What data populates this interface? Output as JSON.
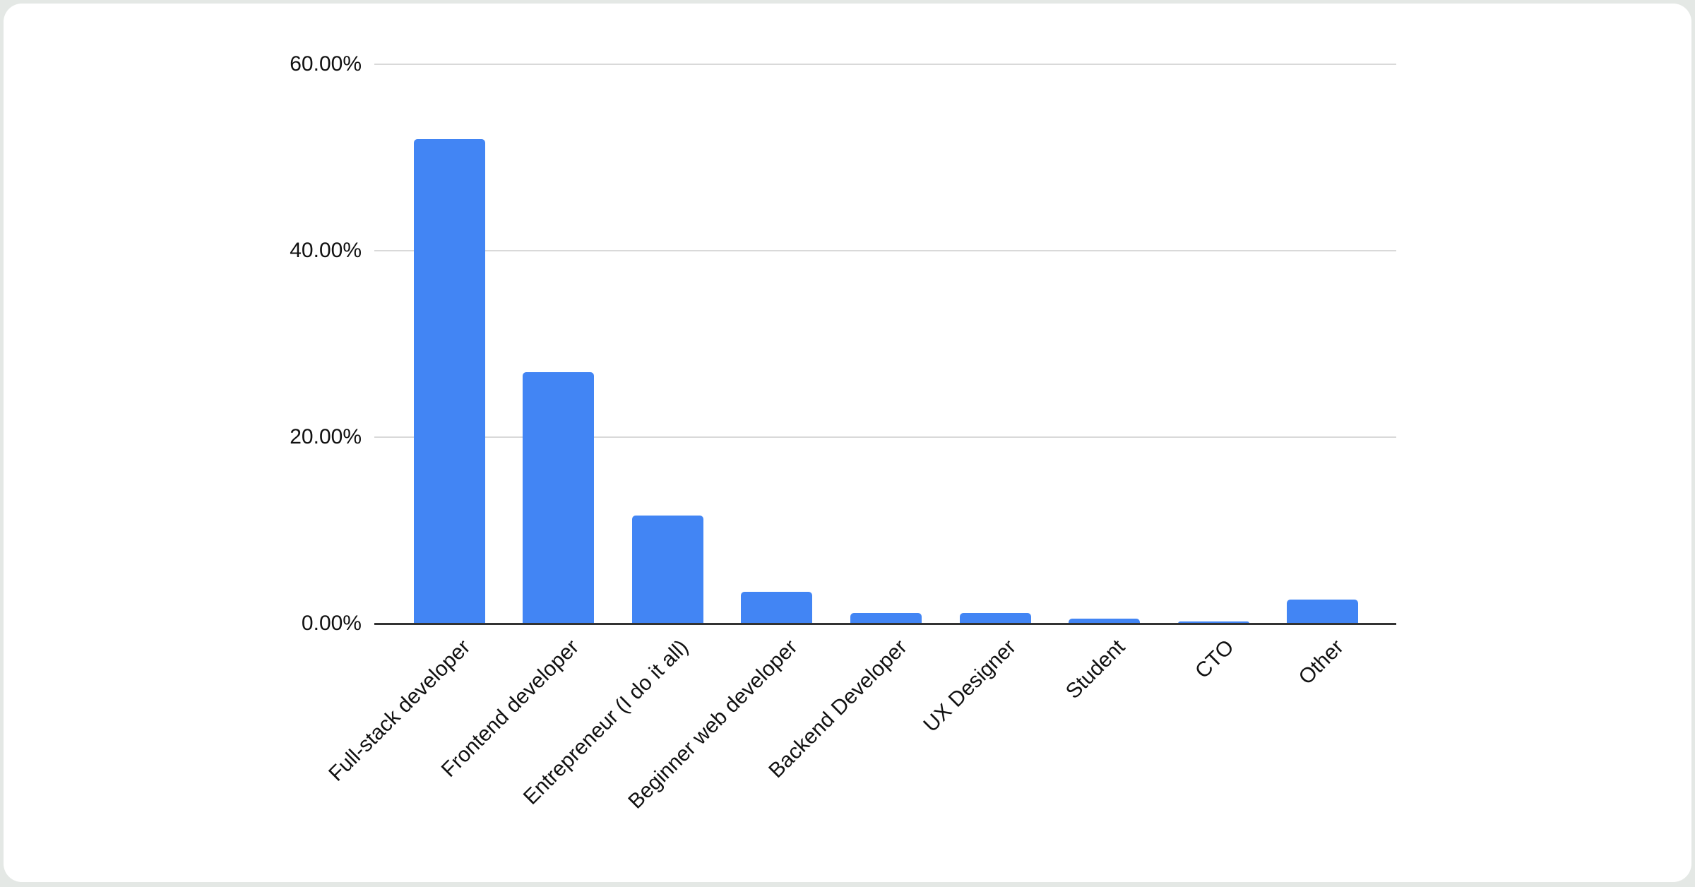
{
  "page": {
    "background_color": "#e4e8e5",
    "card_color": "#ffffff"
  },
  "chart_data": {
    "type": "bar",
    "title": "",
    "xlabel": "",
    "ylabel": "",
    "categories": [
      "Full-stack developer",
      "Frontend developer",
      "Entrepreneur (I do it all)",
      "Beginner web developer",
      "Backend Developer",
      "UX Designer",
      "Student",
      "CTO",
      "Other"
    ],
    "values": [
      52.0,
      27.0,
      11.6,
      3.4,
      1.1,
      1.1,
      0.5,
      0.25,
      2.6
    ],
    "value_unit": "percent",
    "ylim": [
      0,
      60
    ],
    "y_ticks": [
      {
        "value": 0,
        "label": "0.00%"
      },
      {
        "value": 20,
        "label": "20.00%"
      },
      {
        "value": 40,
        "label": "40.00%"
      },
      {
        "value": 60,
        "label": "60.00%"
      }
    ],
    "grid": "horizontal",
    "legend": "none",
    "bar_color": "#4285F4",
    "gridline_color": "#d9d9d9",
    "axis_line_color": "#333333",
    "label_color": "#111111"
  }
}
